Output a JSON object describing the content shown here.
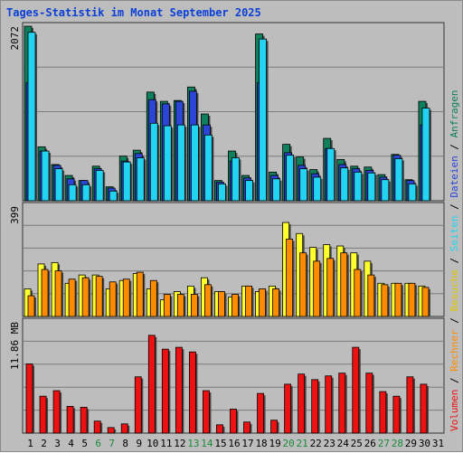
{
  "chart_data": {
    "type": "bar",
    "title": "Tages-Statistik im Monat September 2025",
    "days": [
      "1",
      "2",
      "3",
      "4",
      "5",
      "6",
      "7",
      "8",
      "9",
      "10",
      "11",
      "12",
      "13",
      "14",
      "15",
      "16",
      "17",
      "18",
      "19",
      "20",
      "21",
      "22",
      "23",
      "24",
      "25",
      "26",
      "27",
      "28",
      "29",
      "30",
      "31"
    ],
    "weekend_days": [
      "6",
      "7",
      "13",
      "14",
      "20",
      "21",
      "27",
      "28"
    ],
    "colors": {
      "anfragen": "#0f7f5c",
      "dateien": "#2b45d6",
      "seiten": "#22d3f2",
      "besuche": "#ffff2e",
      "rechner": "#ff8c00",
      "volumen": "#ee1111",
      "weekday_label": "#000000",
      "weekend_label": "#1a8a3a"
    },
    "panels": [
      {
        "id": "requests",
        "max_label": "2072",
        "ymax": 2072,
        "series": [
          {
            "name": "Anfragen",
            "values": [
              2072,
              640,
              430,
              300,
              240,
              410,
              165,
              530,
              600,
              1290,
              1180,
              1190,
              1350,
              1030,
              240,
              590,
              300,
              1980,
              340,
              670,
              520,
              370,
              740,
              490,
              410,
              400,
              310,
              550,
              250,
              1180,
              0
            ]
          },
          {
            "name": "Dateien",
            "values": [
              1400,
              590,
              420,
              260,
              240,
              380,
              150,
              470,
              560,
              1200,
              1150,
              1180,
              1300,
              900,
              220,
              470,
              270,
              1400,
              300,
              570,
              420,
              320,
              620,
              430,
              380,
              360,
              280,
              540,
              240,
              900,
              0
            ]
          },
          {
            "name": "Seiten",
            "values": [
              2000,
              590,
              380,
              190,
              190,
              360,
              115,
              460,
              510,
              920,
              890,
              900,
              900,
              780,
              200,
              510,
              240,
              1920,
              260,
              540,
              380,
              280,
              620,
              390,
              340,
              330,
              250,
              500,
              200,
              1100,
              0
            ]
          }
        ]
      },
      {
        "id": "visits",
        "max_label": "399",
        "ymax": 399,
        "series": [
          {
            "name": "Besuche",
            "values": [
              100,
              190,
              195,
              120,
              150,
              150,
              100,
              130,
              155,
              100,
              60,
              90,
              110,
              140,
              90,
              70,
              110,
              90,
              110,
              340,
              300,
              250,
              260,
              255,
              230,
              200,
              120,
              120,
              120,
              110,
              0
            ]
          },
          {
            "name": "Rechner",
            "values": [
              75,
              170,
              165,
              135,
              140,
              145,
              125,
              135,
              160,
              130,
              80,
              80,
              80,
              115,
              90,
              80,
              110,
              100,
              100,
              280,
              230,
              200,
              210,
              230,
              170,
              150,
              115,
              120,
              120,
              105,
              0
            ]
          }
        ]
      },
      {
        "id": "volume",
        "max_label": "11.86 MB",
        "ymax": 11.86,
        "series": [
          {
            "name": "Volumen",
            "values": [
              7.5,
              4.0,
              4.6,
              2.9,
              2.8,
              1.3,
              0.6,
              1.0,
              6.1,
              10.6,
              9.1,
              9.3,
              8.8,
              4.6,
              0.9,
              2.6,
              1.2,
              4.3,
              1.4,
              5.3,
              6.4,
              5.8,
              6.2,
              6.5,
              9.3,
              6.5,
              4.5,
              4.0,
              6.1,
              5.3,
              0.0
            ]
          }
        ]
      }
    ],
    "legend": [
      {
        "key": "volumen",
        "label": "Volumen"
      },
      {
        "key": "rechner",
        "label": "Rechner"
      },
      {
        "key": "besuche",
        "label": "Besuche"
      },
      {
        "key": "seiten",
        "label": "Seiten"
      },
      {
        "key": "dateien",
        "label": "Dateien"
      },
      {
        "key": "anfragen",
        "label": "Anfragen"
      }
    ],
    "legend_separator": " / ",
    "grid": true
  }
}
